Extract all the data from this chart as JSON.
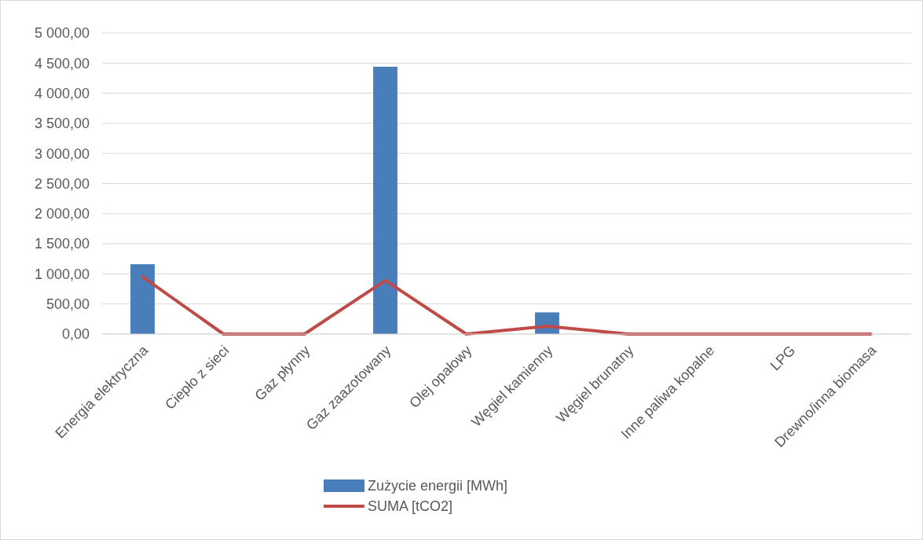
{
  "chart_data": {
    "type": "bar",
    "categories": [
      "Energia elektryczna",
      "Ciepło z sieci",
      "Gaz płynny",
      "Gaz zaazotowany",
      "Olej opałowy",
      "Węgiel kamienny",
      "Węgiel brunatny",
      "Inne paliwa kopalne",
      "LPG",
      "Drewno/inna biomasa"
    ],
    "series": [
      {
        "name": "Zużycie energii [MWh]",
        "color": "#4a7ebb",
        "values": [
          1160,
          0,
          0,
          4440,
          0,
          360,
          0,
          0,
          0,
          0
        ]
      },
      {
        "name": "SUMA [tCO2]",
        "color": "#be4b48",
        "type": "line",
        "values": [
          950,
          0,
          0,
          890,
          0,
          130,
          0,
          0,
          0,
          0
        ]
      }
    ],
    "ylim": [
      0,
      5000
    ],
    "yticks": [
      {
        "value": 0,
        "label": "0,00"
      },
      {
        "value": 500,
        "label": "500,00"
      },
      {
        "value": 1000,
        "label": "1 000,00"
      },
      {
        "value": 1500,
        "label": "1 500,00"
      },
      {
        "value": 2000,
        "label": "2 000,00"
      },
      {
        "value": 2500,
        "label": "2 500,00"
      },
      {
        "value": 3000,
        "label": "3 000,00"
      },
      {
        "value": 3500,
        "label": "3 500,00"
      },
      {
        "value": 4000,
        "label": "4 000,00"
      },
      {
        "value": 4500,
        "label": "4 500,00"
      },
      {
        "value": 5000,
        "label": "5 000,00"
      }
    ],
    "grid": "y",
    "legend": "bottom",
    "marker": "none",
    "line_style": "solid"
  }
}
